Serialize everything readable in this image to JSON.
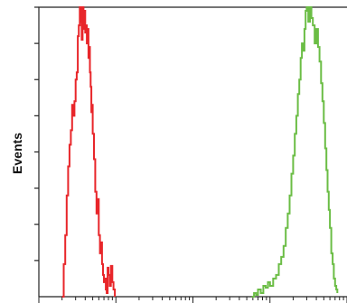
{
  "chart_data": {
    "type": "line",
    "title": "",
    "xlabel": "",
    "ylabel": "Events",
    "x_scale": "log",
    "xlim": [
      1,
      10000
    ],
    "ylim": [
      0,
      8
    ],
    "grid": false,
    "legend": "none",
    "series": [
      {
        "color": "#e8262a",
        "x": [
          2.0,
          2.1,
          2.2,
          2.3,
          2.4,
          2.5,
          2.6,
          2.7,
          2.8,
          2.9,
          3.0,
          3.1,
          3.2,
          3.3,
          3.4,
          3.5,
          3.6,
          3.7,
          3.8,
          3.9,
          4.0,
          4.1,
          4.2,
          4.3,
          4.4,
          4.5,
          4.6,
          4.7,
          4.8,
          4.9,
          5.0,
          5.2,
          5.4,
          5.6,
          5.8,
          6.0,
          6.2,
          6.4,
          6.6,
          6.8,
          7.0,
          7.2,
          7.4,
          7.6,
          7.8,
          8.0,
          8.3,
          8.6,
          9.0,
          9.3,
          9.7
        ],
        "values": [
          0.0,
          0.9,
          1.7,
          2.8,
          3.6,
          4.2,
          4.6,
          5.3,
          5.0,
          5.4,
          6.0,
          6.2,
          7.2,
          7.5,
          8.0,
          7.6,
          7.1,
          8.0,
          7.4,
          7.9,
          7.3,
          7.5,
          7.0,
          7.4,
          6.6,
          6.9,
          6.2,
          5.8,
          5.1,
          5.3,
          4.5,
          3.8,
          2.9,
          2.3,
          2.7,
          1.7,
          1.2,
          1.5,
          0.9,
          0.6,
          0.4,
          0.5,
          0.2,
          0.1,
          0.8,
          0.6,
          0.3,
          0.85,
          0.4,
          0.2,
          0.0
        ]
      },
      {
        "color": "#6bbd45",
        "x": [
          580,
          620,
          660,
          700,
          760,
          820,
          880,
          940,
          1000,
          1100,
          1200,
          1300,
          1400,
          1500,
          1600,
          1700,
          1800,
          1900,
          2000,
          2100,
          2200,
          2300,
          2400,
          2500,
          2600,
          2700,
          2800,
          2900,
          3000,
          3150,
          3300,
          3450,
          3600,
          3800,
          4000,
          4200,
          4400,
          4600,
          4800,
          5000,
          5200,
          5400,
          5600,
          5800,
          6000,
          6250,
          6500,
          6750,
          7000,
          7250,
          7500
        ],
        "values": [
          0.0,
          0.1,
          0.05,
          0.2,
          0.1,
          0.3,
          0.25,
          0.4,
          0.3,
          0.5,
          0.6,
          0.9,
          1.1,
          1.4,
          1.9,
          2.3,
          2.8,
          3.4,
          3.9,
          4.5,
          5.0,
          5.6,
          6.0,
          6.6,
          7.0,
          6.8,
          7.4,
          7.9,
          8.0,
          7.6,
          8.0,
          7.7,
          7.5,
          7.0,
          7.4,
          6.9,
          6.5,
          5.9,
          5.4,
          4.8,
          4.1,
          3.5,
          2.9,
          2.4,
          1.9,
          1.2,
          0.9,
          0.5,
          0.3,
          0.2,
          0.1
        ]
      }
    ]
  }
}
